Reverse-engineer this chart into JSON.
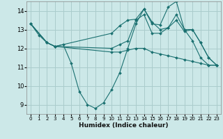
{
  "xlabel": "Humidex (Indice chaleur)",
  "background_color": "#cce8e8",
  "grid_color": "#aacccc",
  "line_color": "#1a7070",
  "xlim": [
    -0.5,
    23.5
  ],
  "ylim": [
    8.5,
    14.5
  ],
  "xticks": [
    0,
    1,
    2,
    3,
    4,
    5,
    6,
    7,
    8,
    9,
    10,
    11,
    12,
    13,
    14,
    15,
    16,
    17,
    18,
    19,
    20,
    21,
    22,
    23
  ],
  "yticks": [
    9,
    10,
    11,
    12,
    13,
    14
  ],
  "lines": [
    {
      "x": [
        0,
        1,
        2,
        3,
        4,
        5,
        6,
        7,
        8,
        9,
        10,
        11,
        12,
        13,
        14,
        15,
        16,
        17,
        18,
        19,
        20,
        21,
        22,
        23
      ],
      "y": [
        13.3,
        12.7,
        12.3,
        12.1,
        12.2,
        11.2,
        9.7,
        9.0,
        8.8,
        9.1,
        9.8,
        10.7,
        12.0,
        13.3,
        14.1,
        13.4,
        13.0,
        13.1,
        13.8,
        13.0,
        12.4,
        11.5,
        11.1,
        11.1
      ]
    },
    {
      "x": [
        0,
        2,
        3,
        10,
        11,
        12,
        13,
        14,
        15,
        16,
        17,
        18,
        19,
        20,
        21,
        22,
        23
      ],
      "y": [
        13.3,
        12.3,
        12.1,
        12.8,
        13.2,
        13.5,
        13.55,
        14.1,
        13.3,
        13.25,
        14.2,
        14.5,
        13.0,
        13.0,
        12.3,
        11.5,
        11.1
      ]
    },
    {
      "x": [
        0,
        2,
        3,
        10,
        11,
        12,
        13,
        14,
        15,
        16,
        17,
        18,
        19,
        20,
        21,
        22,
        23
      ],
      "y": [
        13.3,
        12.3,
        12.1,
        12.0,
        12.2,
        12.4,
        13.5,
        13.8,
        12.8,
        12.8,
        13.1,
        13.5,
        12.9,
        13.0,
        12.3,
        11.5,
        11.1
      ]
    },
    {
      "x": [
        0,
        2,
        3,
        10,
        11,
        12,
        13,
        14,
        15,
        16,
        17,
        18,
        19,
        20,
        21,
        22,
        23
      ],
      "y": [
        13.3,
        12.3,
        12.1,
        11.8,
        11.8,
        11.9,
        12.0,
        12.0,
        11.8,
        11.7,
        11.6,
        11.5,
        11.4,
        11.3,
        11.2,
        11.1,
        11.1
      ]
    }
  ]
}
